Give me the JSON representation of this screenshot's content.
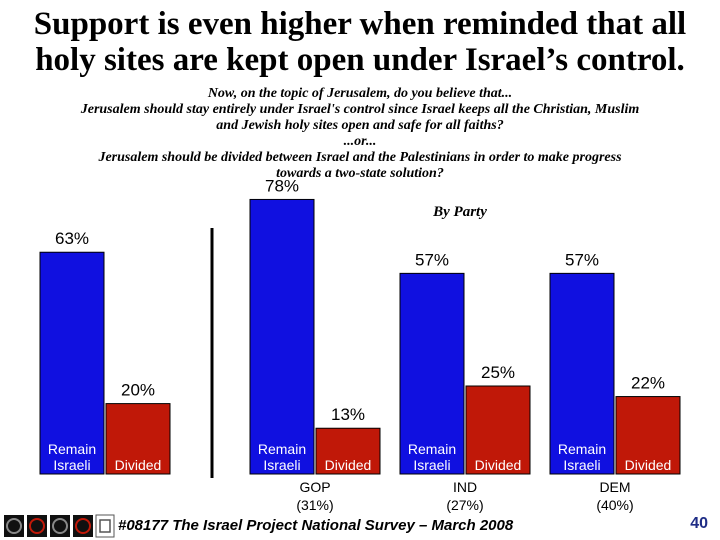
{
  "title_lines": [
    "Support is even higher when reminded that all",
    "holy sites are kept open under Israel’s control."
  ],
  "question_lines": [
    "Now, on the topic of Jerusalem, do you believe that...",
    "Jerusalem should stay entirely under Israel's control since Israel keeps all the Christian, Muslim",
    "and Jewish holy sites open and safe for all faiths?",
    "...or...",
    "Jerusalem should be divided between Israel and the Palestinians in order to make progress",
    "towards a two-state solution?"
  ],
  "by_party_label": "By Party",
  "footer": "#08177 The Israel Project National Survey – March 2008",
  "page_number": "40",
  "colors": {
    "remain": "#1010e0",
    "divided": "#c01808",
    "divider": "#000000",
    "page_number": "#1f2d86"
  },
  "chart_data": {
    "type": "bar",
    "categories": [
      {
        "name": "",
        "share": ""
      },
      {
        "name": "GOP",
        "share": "(31%)"
      },
      {
        "name": "IND",
        "share": "(27%)"
      },
      {
        "name": "DEM",
        "share": "(40%)"
      }
    ],
    "series": [
      {
        "name": "Remain Israeli",
        "values": [
          63,
          78,
          57,
          57
        ],
        "labels": [
          "63%",
          "78%",
          "57%",
          "57%"
        ]
      },
      {
        "name": "Divided",
        "values": [
          20,
          13,
          25,
          22
        ],
        "labels": [
          "20%",
          "13%",
          "25%",
          "22%"
        ]
      }
    ],
    "bar_text": {
      "remain_line1": "Remain",
      "remain_line2": "Israeli",
      "divided": "Divided"
    },
    "ylim": [
      0,
      100
    ],
    "grid": false,
    "legend": "none"
  },
  "logos": [
    "logo-1",
    "logo-2",
    "logo-3",
    "logo-4",
    "logo-5"
  ]
}
